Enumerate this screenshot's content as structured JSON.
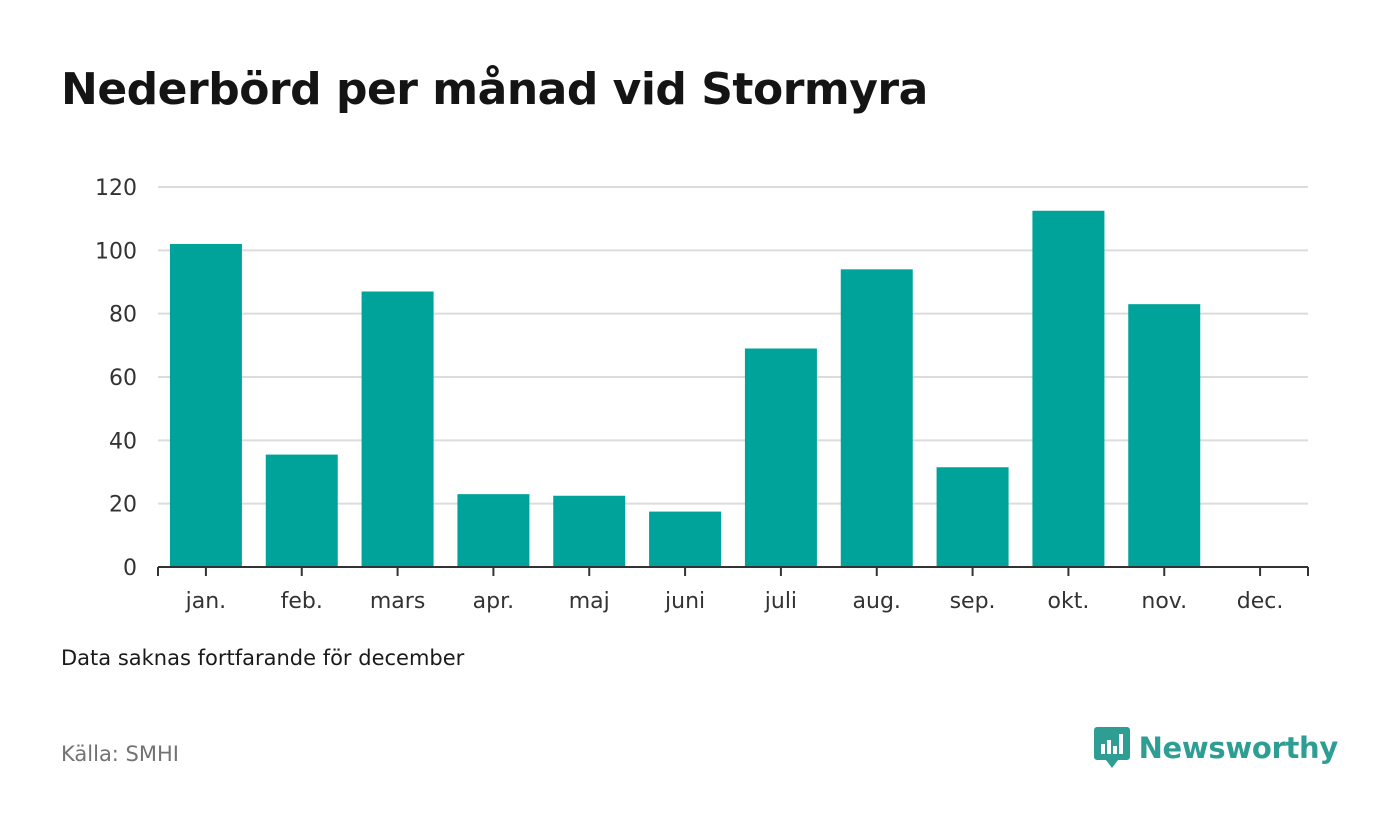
{
  "title": "Nederbörd per månad vid Stormyra",
  "note": "Data saknas fortfarande för december",
  "source": "Källa: SMHI",
  "brand": "Newsworthy",
  "colors": {
    "bar": "#00a39a",
    "grid": "#dcdcdc",
    "axis": "#333333",
    "brand": "#2e9e94"
  },
  "chart_data": {
    "type": "bar",
    "title": "Nederbörd per månad vid Stormyra",
    "xlabel": "",
    "ylabel": "",
    "categories": [
      "jan.",
      "feb.",
      "mars",
      "apr.",
      "maj",
      "juni",
      "juli",
      "aug.",
      "sep.",
      "okt.",
      "nov.",
      "dec."
    ],
    "values": [
      102,
      35.5,
      87,
      23,
      22.5,
      17.5,
      69,
      94,
      31.5,
      112.5,
      83,
      null
    ],
    "ylim": [
      0,
      120
    ],
    "yticks": [
      0,
      20,
      40,
      60,
      80,
      100,
      120
    ],
    "grid": true,
    "legend": "none"
  }
}
